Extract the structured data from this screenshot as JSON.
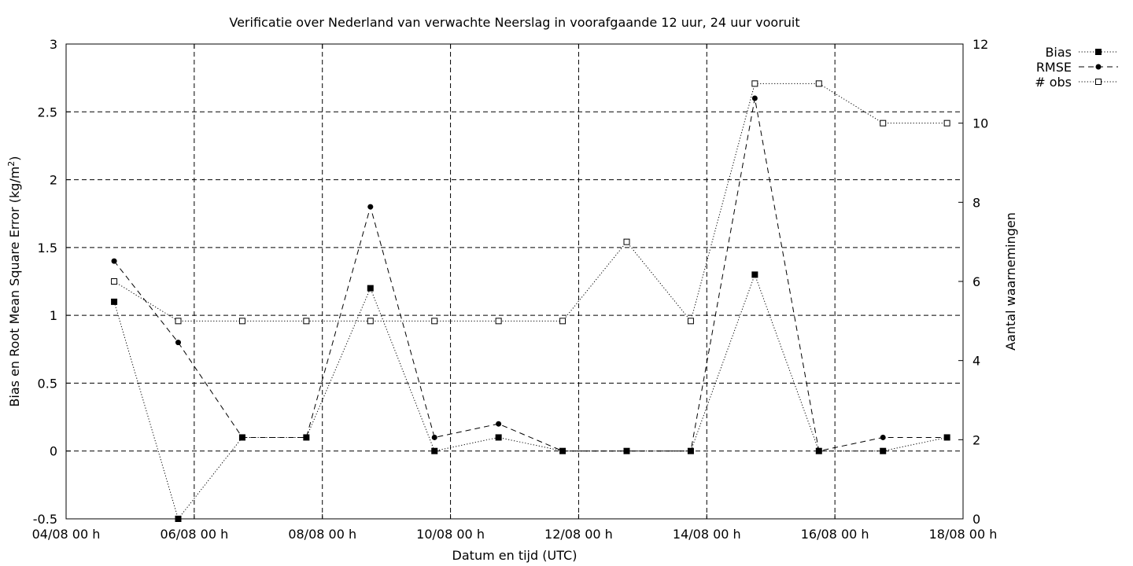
{
  "chart_data": {
    "type": "line",
    "title": "Verificatie over Nederland van verwachte Neerslag in voorafgaande 12 uur, 24 uur vooruit",
    "xlabel": "Datum en tijd (UTC)",
    "ylabel_left": "Bias en Root Mean Square Error (kg/m",
    "ylabel_left_sup": "2",
    "ylabel_left_end": ")",
    "ylabel_right": "Aantal waarnemingen",
    "x_tick_labels": [
      "04/08 00 h",
      "06/08 00 h",
      "08/08 00 h",
      "10/08 00 h",
      "12/08 00 h",
      "14/08 00 h",
      "16/08 00 h",
      "18/08 00 h"
    ],
    "x_ticks": [
      "2024-08-04T00:00",
      "2024-08-06T00:00",
      "2024-08-08T00:00",
      "2024-08-10T00:00",
      "2024-08-12T00:00",
      "2024-08-14T00:00",
      "2024-08-16T00:00",
      "2024-08-18T00:00"
    ],
    "xlim": [
      "2024-08-04T00:00",
      "2024-08-18T00:00"
    ],
    "y_left_ticks": [
      "-0.5",
      "0",
      "0.5",
      "1",
      "1.5",
      "2",
      "2.5",
      "3"
    ],
    "ylim_left": [
      -0.5,
      3
    ],
    "y_right_ticks": [
      "0",
      "2",
      "4",
      "6",
      "8",
      "10",
      "12"
    ],
    "ylim_right": [
      0,
      12
    ],
    "grid": true,
    "legend_position": "top-right, outside plot",
    "x": [
      "2024-08-04T18:00",
      "2024-08-05T18:00",
      "2024-08-06T18:00",
      "2024-08-07T18:00",
      "2024-08-08T18:00",
      "2024-08-09T18:00",
      "2024-08-10T18:00",
      "2024-08-11T18:00",
      "2024-08-12T18:00",
      "2024-08-13T18:00",
      "2024-08-14T18:00",
      "2024-08-15T18:00",
      "2024-08-16T18:00",
      "2024-08-17T18:00"
    ],
    "series": [
      {
        "name": "Bias",
        "axis": "left",
        "style": "dotted",
        "marker": "filled-square",
        "color": "#000000",
        "values": [
          1.1,
          -0.5,
          0.1,
          0.1,
          1.2,
          0.0,
          0.1,
          0.0,
          0.0,
          0.0,
          1.3,
          0.0,
          0.0,
          0.1
        ]
      },
      {
        "name": "RMSE",
        "axis": "left",
        "style": "dashed",
        "marker": "filled-circle",
        "color": "#000000",
        "values": [
          1.4,
          0.8,
          0.1,
          0.1,
          1.8,
          0.1,
          0.2,
          0.0,
          0.0,
          0.0,
          2.6,
          0.0,
          0.1,
          0.1
        ]
      },
      {
        "name": "# obs",
        "axis": "right",
        "style": "dotted",
        "marker": "open-square",
        "color": "#000000",
        "values": [
          6,
          5,
          5,
          5,
          5,
          5,
          5,
          5,
          7,
          5,
          11,
          11,
          10,
          10
        ]
      }
    ]
  }
}
